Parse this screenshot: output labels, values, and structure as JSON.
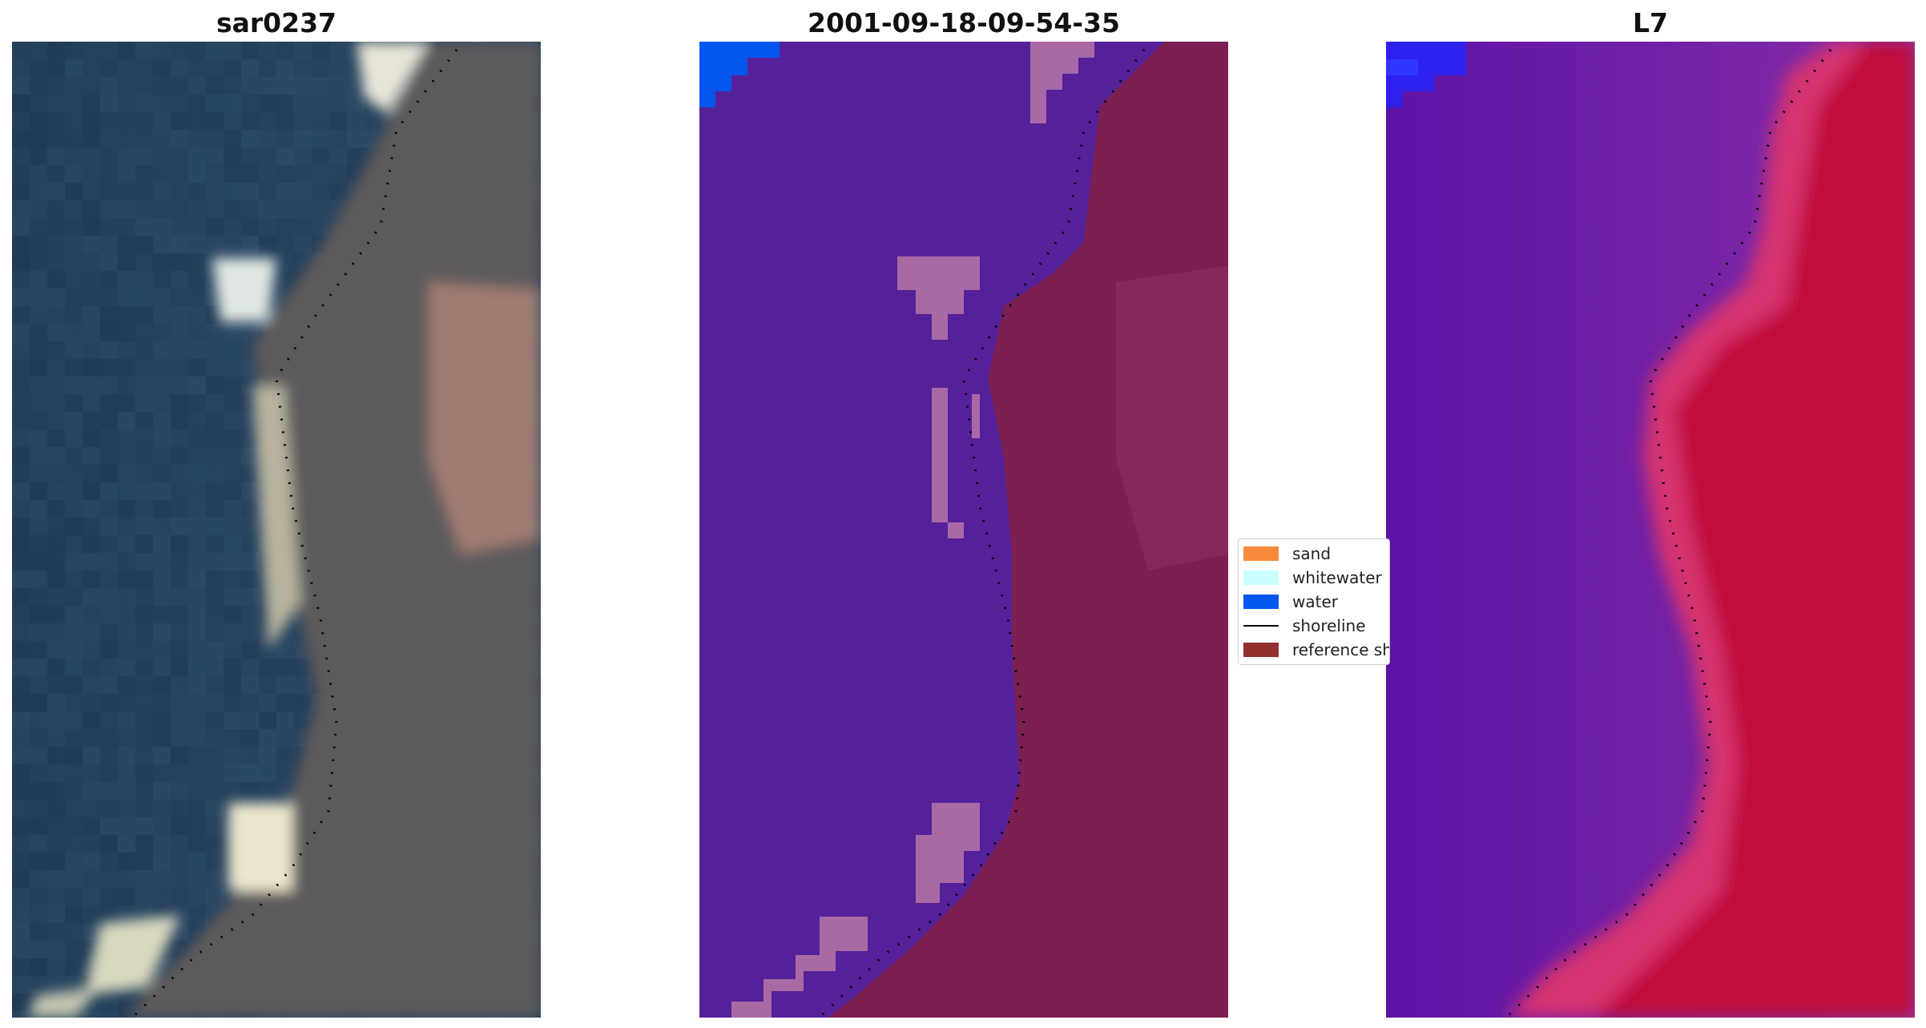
{
  "panels": [
    {
      "title": "sar0237"
    },
    {
      "title": "2001-09-18-09-54-35"
    },
    {
      "title": "L7"
    }
  ],
  "legend": {
    "items": [
      {
        "label": "sand",
        "color": "#f88c3c"
      },
      {
        "label": "whitewater",
        "color": "#c9ffff"
      },
      {
        "label": "water",
        "color": "#0556ee"
      },
      {
        "label": "shoreline",
        "color": "#000000"
      },
      {
        "label": "reference shoreline",
        "color": "#94302f"
      }
    ]
  },
  "colors": {
    "classified_water": "#55219a",
    "classified_land": "#7b1f52",
    "classified_pink": "#a869a5",
    "mndwi_water": "#6a18a8",
    "mndwi_land": "#c10a3a"
  }
}
